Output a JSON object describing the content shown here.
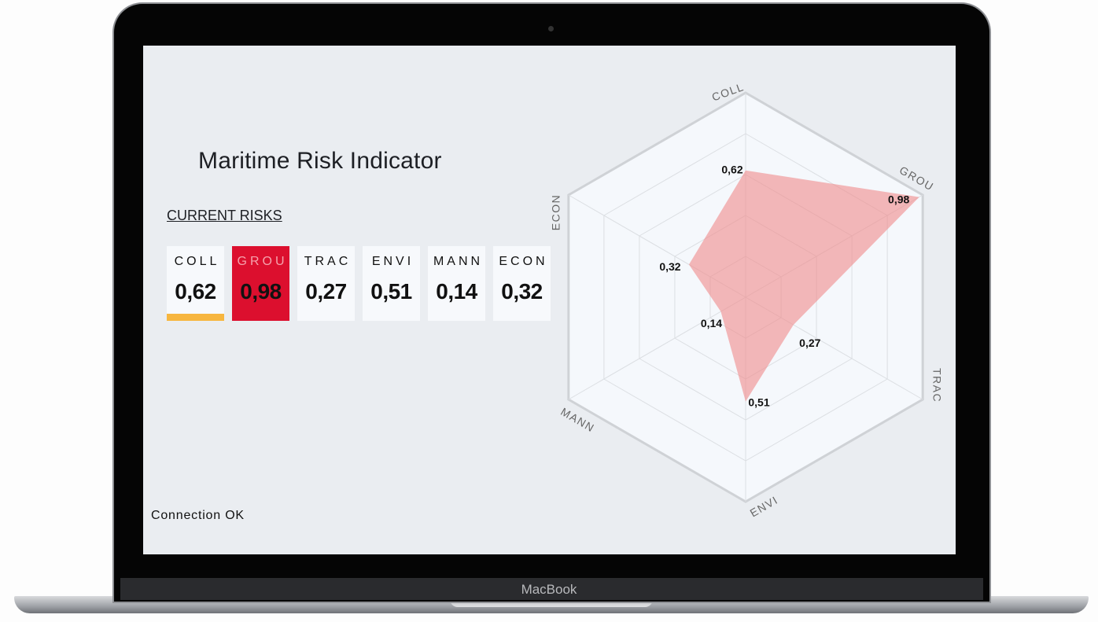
{
  "device": {
    "brand": "MacBook"
  },
  "header": {
    "title": "Maritime Risk Indicator"
  },
  "section": {
    "label": "CURRENT RISKS"
  },
  "status": {
    "text": "Connection OK"
  },
  "chart_data": {
    "type": "radar",
    "categories": [
      "COLL",
      "GROU",
      "TRAC",
      "ENVI",
      "MANN",
      "ECON"
    ],
    "values": [
      0.62,
      0.98,
      0.27,
      0.51,
      0.14,
      0.32
    ],
    "value_labels": [
      "0,62",
      "0,98",
      "0,27",
      "0,51",
      "0,14",
      "0,32"
    ],
    "color": "#f08a8a",
    "ylim": [
      0,
      1
    ],
    "yticks": [
      0.2,
      0.4,
      0.6,
      0.8,
      1
    ],
    "grid": true
  }
}
